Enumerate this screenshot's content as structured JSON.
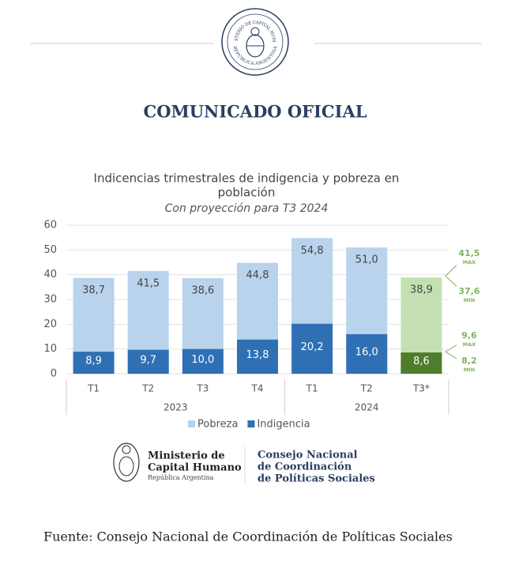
{
  "header": {
    "seal_top": "MINISTERIO DE CAPITAL HUMANO",
    "seal_bottom": "REPÚBLICA ARGENTINA",
    "title": "COMUNICADO OFICIAL"
  },
  "chart_data": {
    "type": "bar",
    "title": [
      "Indicencias trimestrales de indigencia y pobreza en",
      "población"
    ],
    "subtitle": "Con proyección para T3 2024",
    "categories": [
      "T1",
      "T2",
      "T3",
      "T4",
      "T1",
      "T2",
      "T3*"
    ],
    "groups": [
      {
        "label": "2023",
        "span": [
          0,
          3
        ]
      },
      {
        "label": "2024",
        "span": [
          4,
          6
        ]
      }
    ],
    "series": [
      {
        "name": "Pobreza",
        "color": "#b9d3ec",
        "colors": [
          "#b9d3ec",
          "#b9d3ec",
          "#b9d3ec",
          "#b9d3ec",
          "#b9d3ec",
          "#b9d3ec",
          "#c4e0b2"
        ],
        "values": [
          38.7,
          41.5,
          38.6,
          44.8,
          54.8,
          51.0,
          38.9
        ],
        "value_labels": [
          "38,7",
          "41,5",
          "38,6",
          "44,8",
          "54,8",
          "51,0",
          "38,9"
        ]
      },
      {
        "name": "Indigencia",
        "color": "#2f70b5",
        "colors": [
          "#2f70b5",
          "#2f70b5",
          "#2f70b5",
          "#2f70b5",
          "#2f70b5",
          "#2f70b5",
          "#4e7d2b"
        ],
        "values": [
          8.9,
          9.7,
          10.0,
          13.8,
          20.2,
          16.0,
          8.6
        ],
        "value_labels": [
          "8,9",
          "9,7",
          "10,0",
          "13,8",
          "20,2",
          "16,0",
          "8,6"
        ]
      }
    ],
    "projection_ranges": [
      {
        "max": 41.5,
        "max_label": "41,5",
        "min": 37.6,
        "min_label": "37,6"
      },
      {
        "max": 9.6,
        "max_label": "9,6",
        "min": 8.2,
        "min_label": "8,2"
      }
    ],
    "max_text": "MAX",
    "min_text": "MIN",
    "range_color": "#7fb55a",
    "ylim": [
      0,
      60
    ],
    "yticks": [
      0,
      10,
      20,
      30,
      40,
      50,
      60
    ],
    "grid": true,
    "legend": "bottom"
  },
  "footer": {
    "ministry": [
      "Ministerio de",
      "Capital Humano",
      "República Argentina"
    ],
    "council": [
      "Consejo Nacional",
      "de Coordinación",
      "de Políticas Sociales"
    ],
    "source": "Fuente: Consejo Nacional de Coordinación de Políticas Sociales"
  }
}
